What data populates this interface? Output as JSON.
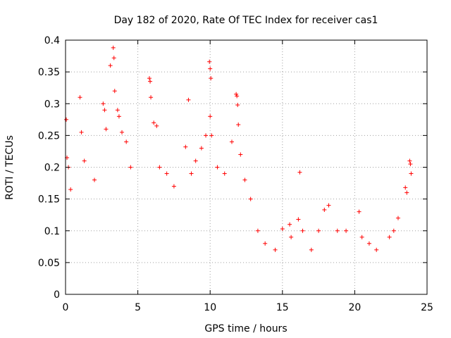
{
  "chart_data": {
    "type": "scatter",
    "title": "Day 182 of 2020, Rate Of TEC Index for receiver cas1",
    "xlabel": "GPS time / hours",
    "ylabel": "ROTI / TECUs",
    "xlim": [
      0,
      25
    ],
    "ylim": [
      0,
      0.4
    ],
    "x_ticks": [
      0,
      5,
      10,
      15,
      20,
      25
    ],
    "y_ticks": [
      0,
      0.05,
      0.1,
      0.15,
      0.2,
      0.25,
      0.3,
      0.35,
      0.4
    ],
    "x_tick_labels": [
      "0",
      "5",
      "10",
      "15",
      "20",
      "25"
    ],
    "y_tick_labels": [
      "0",
      "0.05",
      "0.1",
      "0.15",
      "0.2",
      "0.25",
      "0.3",
      "0.35",
      "0.4"
    ],
    "grid": true,
    "marker": "+",
    "color": "#ff0000",
    "series": [
      {
        "values": [
          {
            "x": 0.05,
            "y": 0.275
          },
          {
            "x": 0.1,
            "y": 0.215
          },
          {
            "x": 0.2,
            "y": 0.2
          },
          {
            "x": 0.35,
            "y": 0.165
          },
          {
            "x": 1.0,
            "y": 0.31
          },
          {
            "x": 1.1,
            "y": 0.255
          },
          {
            "x": 1.3,
            "y": 0.21
          },
          {
            "x": 2.0,
            "y": 0.18
          },
          {
            "x": 2.6,
            "y": 0.3
          },
          {
            "x": 2.7,
            "y": 0.29
          },
          {
            "x": 2.8,
            "y": 0.26
          },
          {
            "x": 3.1,
            "y": 0.36
          },
          {
            "x": 3.3,
            "y": 0.388
          },
          {
            "x": 3.35,
            "y": 0.372
          },
          {
            "x": 3.4,
            "y": 0.32
          },
          {
            "x": 3.6,
            "y": 0.29
          },
          {
            "x": 3.7,
            "y": 0.28
          },
          {
            "x": 3.9,
            "y": 0.255
          },
          {
            "x": 4.2,
            "y": 0.24
          },
          {
            "x": 4.5,
            "y": 0.2
          },
          {
            "x": 5.8,
            "y": 0.34
          },
          {
            "x": 5.85,
            "y": 0.335
          },
          {
            "x": 5.9,
            "y": 0.31
          },
          {
            "x": 6.1,
            "y": 0.27
          },
          {
            "x": 6.3,
            "y": 0.265
          },
          {
            "x": 6.5,
            "y": 0.2
          },
          {
            "x": 7.0,
            "y": 0.19
          },
          {
            "x": 7.5,
            "y": 0.17
          },
          {
            "x": 8.3,
            "y": 0.232
          },
          {
            "x": 8.5,
            "y": 0.306
          },
          {
            "x": 8.7,
            "y": 0.19
          },
          {
            "x": 9.0,
            "y": 0.21
          },
          {
            "x": 9.4,
            "y": 0.23
          },
          {
            "x": 9.7,
            "y": 0.25
          },
          {
            "x": 9.95,
            "y": 0.366
          },
          {
            "x": 10.0,
            "y": 0.355
          },
          {
            "x": 10.05,
            "y": 0.34
          },
          {
            "x": 10.0,
            "y": 0.28
          },
          {
            "x": 10.1,
            "y": 0.25
          },
          {
            "x": 10.5,
            "y": 0.2
          },
          {
            "x": 11.0,
            "y": 0.19
          },
          {
            "x": 11.5,
            "y": 0.24
          },
          {
            "x": 11.8,
            "y": 0.315
          },
          {
            "x": 11.85,
            "y": 0.312
          },
          {
            "x": 11.9,
            "y": 0.298
          },
          {
            "x": 11.95,
            "y": 0.267
          },
          {
            "x": 12.1,
            "y": 0.22
          },
          {
            "x": 12.4,
            "y": 0.18
          },
          {
            "x": 12.8,
            "y": 0.15
          },
          {
            "x": 13.3,
            "y": 0.1
          },
          {
            "x": 13.8,
            "y": 0.08
          },
          {
            "x": 14.5,
            "y": 0.07
          },
          {
            "x": 15.0,
            "y": 0.103
          },
          {
            "x": 15.5,
            "y": 0.11
          },
          {
            "x": 15.6,
            "y": 0.09
          },
          {
            "x": 16.1,
            "y": 0.118
          },
          {
            "x": 16.2,
            "y": 0.192
          },
          {
            "x": 16.4,
            "y": 0.1
          },
          {
            "x": 17.0,
            "y": 0.07
          },
          {
            "x": 17.5,
            "y": 0.1
          },
          {
            "x": 17.9,
            "y": 0.133
          },
          {
            "x": 18.2,
            "y": 0.14
          },
          {
            "x": 18.8,
            "y": 0.1
          },
          {
            "x": 19.4,
            "y": 0.1
          },
          {
            "x": 20.3,
            "y": 0.13
          },
          {
            "x": 20.5,
            "y": 0.09
          },
          {
            "x": 21.0,
            "y": 0.08
          },
          {
            "x": 21.5,
            "y": 0.07
          },
          {
            "x": 22.4,
            "y": 0.09
          },
          {
            "x": 22.7,
            "y": 0.1
          },
          {
            "x": 23.0,
            "y": 0.12
          },
          {
            "x": 23.5,
            "y": 0.168
          },
          {
            "x": 23.6,
            "y": 0.16
          },
          {
            "x": 23.8,
            "y": 0.21
          },
          {
            "x": 23.85,
            "y": 0.205
          },
          {
            "x": 23.9,
            "y": 0.19
          }
        ]
      }
    ]
  }
}
